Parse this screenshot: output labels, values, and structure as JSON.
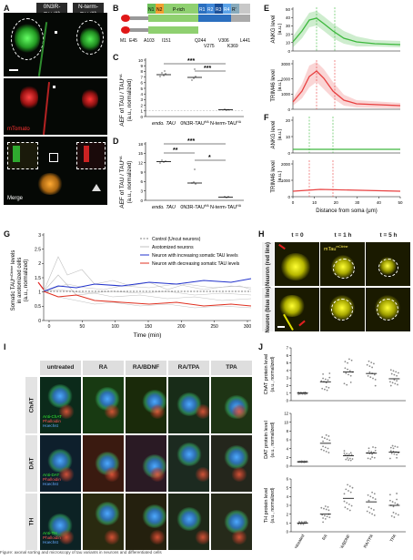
{
  "panels": {
    "A": "A",
    "B": "B",
    "C": "C",
    "D": "D",
    "E": "E",
    "F": "F",
    "G": "G",
    "H": "H",
    "I": "I",
    "J": "J"
  },
  "panelA": {
    "col1": "0N3R-TAU",
    "col1_sup": "HA",
    "col2": "N-term-TAU",
    "col2_sup": "HA",
    "row2_label": "mTomato",
    "row3_label": "Merge"
  },
  "panelB": {
    "segments": [
      "N1",
      "N2",
      "P-rich",
      "R1",
      "R2",
      "R3",
      "R4",
      "R'"
    ],
    "positions_top": [
      "M1",
      "E45",
      "A103",
      "I151",
      "Q244",
      "V306",
      "L441"
    ],
    "positions_bottom": [
      "V275",
      "K369"
    ]
  },
  "panelC": {
    "ylabel": "AEF of TAU / TAU",
    "ylabel_sup": "HA",
    "ylabel2": "(a.u., normalized)",
    "yticks": [
      "0",
      "1",
      "2",
      "3",
      "4",
      "5",
      "6",
      "7",
      "8",
      "9",
      "10"
    ],
    "categories": [
      "endo. TAU",
      "0N3R-TAU",
      "N-term-TAU"
    ],
    "cat_sups": [
      "",
      "HA",
      "HA"
    ],
    "sig": [
      "***",
      "***"
    ]
  },
  "panelD": {
    "ylabel": "AEF of TAU / TAU",
    "ylabel_sup": "HA",
    "ylabel2": "(a.u., normalized)",
    "yticks": [
      "0",
      "3",
      "6",
      "9",
      "12",
      "15",
      "18"
    ],
    "categories": [
      "endo. TAU",
      "0N3R-TAU",
      "N-term-TAU"
    ],
    "cat_sups": [
      "",
      "HA",
      "HA"
    ],
    "sig": [
      "***",
      "**",
      "*"
    ]
  },
  "panelE": {
    "top": {
      "ylabel": "ANKG level",
      "ylabel2": "(a.u.)",
      "yticks": [
        "0",
        "10",
        "20",
        "30",
        "40",
        "50"
      ]
    },
    "bottom": {
      "ylabel": "TRIM46 level",
      "ylabel2": "(a.u.)",
      "yticks": [
        "0",
        "1000",
        "2000",
        "3000"
      ]
    }
  },
  "panelF": {
    "top": {
      "ylabel": "ANKG level",
      "ylabel2": "(a.u.)",
      "yticks": [
        "0",
        "10",
        "20"
      ]
    },
    "bottom": {
      "ylabel": "TRIM46 level",
      "ylabel2": "(a.u.)",
      "yticks": [
        "0",
        "1000",
        "2000"
      ]
    },
    "xlabel": "Distance from soma (μm)",
    "xticks": [
      "0",
      "10",
      "20",
      "30",
      "40",
      "50"
    ]
  },
  "panelG": {
    "ylabel": "Somatic TAU",
    "ylabel_sup": "mCitrine",
    "ylabel_rest": " levels",
    "ylabel2": "in axotomized cells",
    "ylabel3": "(a.u., normalized)",
    "xlabel": "Time (min)",
    "xticks": [
      "0",
      "50",
      "100",
      "150",
      "200",
      "250",
      "300"
    ],
    "yticks": [
      "0",
      "0.5",
      "1",
      "1.5",
      "2",
      "2.5",
      "3"
    ],
    "legend": [
      "Control (Uncut neurons)",
      "Axotomized neurons",
      "Neuron with increasing somatic TAU levels",
      "Neuron with decreasing somatic TAU levels"
    ]
  },
  "panelH": {
    "cols": [
      "t = 0",
      "t = 1 h",
      "t = 5 h"
    ],
    "img_label": "mTau",
    "img_label_sup": "mCitrine",
    "row1": "Neuron (red line)",
    "row2": "Neuron (blue line)"
  },
  "panelI": {
    "cols": [
      "untreated",
      "RA",
      "RA/BDNF",
      "RA/TPA",
      "TPA"
    ],
    "rows": [
      {
        "name": "ChAT",
        "stain1": "Anti-ChAT"
      },
      {
        "name": "DAT",
        "stain1": "Anti-DAT"
      },
      {
        "name": "TH",
        "stain1": "Anti-TH"
      }
    ],
    "stain2": "Phalloidin",
    "stain3": "Hoechst"
  },
  "panelJ": {
    "plots": [
      {
        "ylabel": "ChAT protein level",
        "ylabel2": "(a.u., normalized)",
        "yticks": [
          "0",
          "1",
          "2",
          "3",
          "4",
          "5",
          "6",
          "7"
        ]
      },
      {
        "ylabel": "DAT protein level",
        "ylabel2": "(a.u., normalized)",
        "yticks": [
          "0",
          "2",
          "4",
          "6",
          "8",
          "10",
          "12"
        ]
      },
      {
        "ylabel": "TH protein level",
        "ylabel2": "(a.u., normalized)",
        "yticks": [
          "0",
          "1",
          "2",
          "3",
          "4",
          "5",
          "6"
        ]
      }
    ],
    "categories": [
      "untreated",
      "RA",
      "RA/BDNF",
      "RA/TPA",
      "TPA"
    ]
  },
  "caption": "Figure: axonal sorting and microscopy of tau variants in neurons and differentiated cells"
}
